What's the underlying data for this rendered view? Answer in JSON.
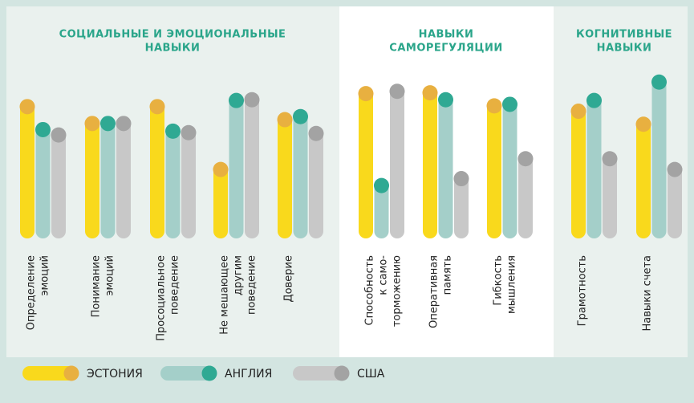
{
  "legend": [
    {
      "name": "ЭСТОНИЯ",
      "color": "#f9d91c",
      "marker_color": "#e8b040"
    },
    {
      "name": "АНГЛИЯ",
      "color": "#a4cfc9",
      "marker_color": "#2fa993"
    },
    {
      "name": "США",
      "color": "#c8c8c8",
      "marker_color": "#a3a3a3"
    }
  ],
  "chart_data": [
    {
      "type": "bar",
      "title": [
        "СОЦИАЛЬНЫЕ И ЭМОЦИОНАЛЬНЫЕ",
        "НАВЫКИ"
      ],
      "categories": [
        [
          "Определение",
          "эмоций"
        ],
        [
          "Понимание",
          "эмоций"
        ],
        [
          "Просоциальное",
          "поведение"
        ],
        [
          "Не мешающее",
          "другим",
          "поведение"
        ],
        [
          "Доверие"
        ]
      ],
      "series": [
        {
          "values": [
            172,
            150,
            172,
            90,
            155
          ]
        },
        {
          "values": [
            142,
            150,
            140,
            180,
            159
          ]
        },
        {
          "values": [
            135,
            150,
            138,
            181,
            137
          ]
        }
      ],
      "ylim": [
        0,
        220
      ]
    },
    {
      "type": "bar",
      "title": [
        "НАВЫКИ",
        "САМОРЕГУЛЯЦИИ"
      ],
      "categories": [
        [
          "Способность",
          "к само-",
          "торможению"
        ],
        [
          "Оперативная",
          "память"
        ],
        [
          "Гибкость",
          "мышления"
        ]
      ],
      "series": [
        {
          "values": [
            189,
            190,
            173
          ]
        },
        {
          "values": [
            69,
            181,
            175
          ]
        },
        {
          "values": [
            192,
            78,
            104
          ]
        }
      ],
      "ylim": [
        0,
        220
      ]
    },
    {
      "type": "bar",
      "title": [
        "КОГНИТИВНЫЕ",
        "НАВЫКИ"
      ],
      "categories": [
        [
          "Грамотность"
        ],
        [
          "Навыки счета"
        ]
      ],
      "series": [
        {
          "values": [
            166,
            149
          ]
        },
        {
          "values": [
            180,
            204
          ]
        },
        {
          "values": [
            104,
            90
          ]
        }
      ],
      "ylim": [
        0,
        220
      ]
    }
  ]
}
